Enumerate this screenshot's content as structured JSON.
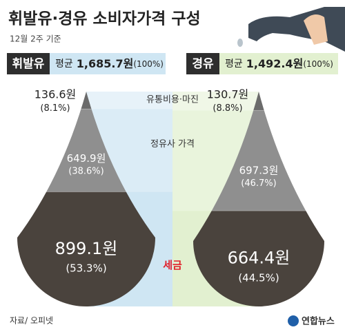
{
  "chart_data": {
    "type": "drop",
    "title": "휘발유·경유 소비자가격 구성",
    "subtitle": "12월 2주 기준",
    "categories": [
      "유통비용·마진",
      "정유사 가격",
      "세금"
    ],
    "series": [
      {
        "name": "휘발유",
        "color": "#cfe6f3",
        "average_text": "평균",
        "total": 1685.7,
        "total_label": "1,685.7원",
        "total_share": 100,
        "total_share_label": "(100%)",
        "values": [
          136.6,
          649.9,
          899.1
        ],
        "value_labels": [
          "136.6원",
          "649.9원",
          "899.1원"
        ],
        "shares": [
          8.1,
          38.6,
          53.3
        ],
        "share_labels": [
          "(8.1%)",
          "(38.6%)",
          "(53.3%)"
        ]
      },
      {
        "name": "경유",
        "color": "#e2f0d0",
        "average_text": "평균",
        "total": 1492.4,
        "total_label": "1,492.4원",
        "total_share": 100,
        "total_share_label": "(100%)",
        "values": [
          130.7,
          697.3,
          664.4
        ],
        "value_labels": [
          "130.7원",
          "697.3원",
          "664.4원"
        ],
        "shares": [
          8.8,
          46.7,
          44.5
        ],
        "share_labels": [
          "(8.8%)",
          "(46.7%)",
          "(44.5%)"
        ]
      }
    ],
    "segment_colors": [
      "#6b6b6b",
      "#8f8f8f",
      "#4a433d"
    ],
    "source": "자료/ 오피넷",
    "credit": "연합뉴스"
  }
}
